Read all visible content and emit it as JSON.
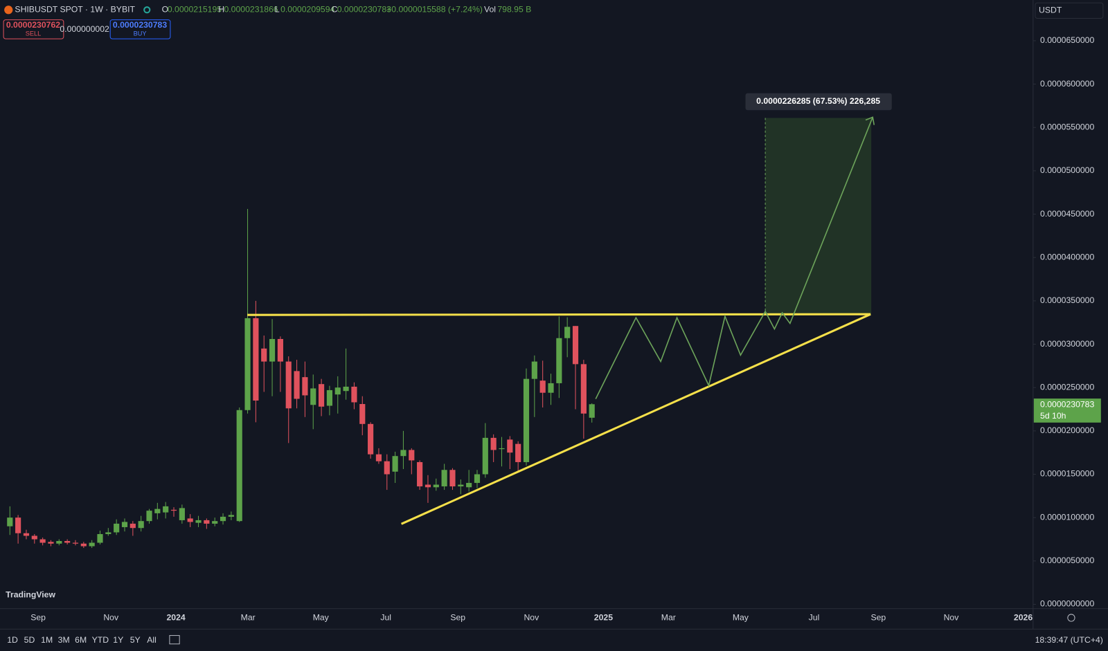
{
  "header": {
    "symbol": "SHIBUSDT SPOT · 1W · BYBIT",
    "ohlc": [
      {
        "key": "O",
        "value": "0.0000215195"
      },
      {
        "key": "H",
        "value": "0.0000231866"
      },
      {
        "key": "L",
        "value": "0.0000209594"
      },
      {
        "key": "C",
        "value": "0.0000230783"
      }
    ],
    "change": "+0.0000015588 (+7.24%)",
    "vol_key": "Vol",
    "vol": "798.95 B",
    "quote": "USDT"
  },
  "trade": {
    "sell_price": "0.0000230762",
    "sell": "SELL",
    "spread": "0.0000000021",
    "buy_price": "0.0000230783",
    "buy": "BUY"
  },
  "chart_data": {
    "type": "candlestick",
    "up_color": "#5da34a",
    "down_color": "#e0525d",
    "open": [
      9e-06,
      1e-05,
      8.2e-06,
      7.9e-06,
      7.5e-06,
      7.2e-06,
      7e-06,
      7.3e-06,
      7.1e-06,
      7e-06,
      6.7e-06,
      7.1e-06,
      8.1e-06,
      8.3e-06,
      8.9e-06,
      9.3e-06,
      8.8e-06,
      9.6e-06,
      1.05e-05,
      1.06e-05,
      1.09e-05,
      9.7e-06,
      9.9e-06,
      9.4e-06,
      9.7e-06,
      9.3e-06,
      9.6e-06,
      1.01e-05,
      9.6e-06,
      2.24e-05,
      3.3e-05,
      2.95e-05,
      2.8e-05,
      3.06e-05,
      2.8e-05,
      2.69e-05,
      2.62e-05,
      2.3e-05,
      2.54e-05,
      2.29e-05,
      2.42e-05,
      2.46e-05,
      2.51e-05,
      2.31e-05,
      2.08e-05,
      1.73e-05,
      1.65e-05,
      1.53e-05,
      1.71e-05,
      1.78e-05,
      1.64e-05,
      1.38e-05,
      1.35e-05,
      1.36e-05,
      1.55e-05,
      1.36e-05,
      1.35e-05,
      1.4e-05,
      1.5e-05,
      1.92e-05,
      1.79e-05,
      1.9e-05,
      1.85e-05,
      1.64e-05,
      2.6e-05,
      2.58e-05,
      2.44e-05,
      2.55e-05,
      3.07e-05,
      3.21e-05,
      2.77e-05,
      2.15195e-05
    ],
    "high": [
      1.13e-05,
      1.03e-05,
      8.6e-06,
      8.1e-06,
      7.7e-06,
      7.4e-06,
      7.5e-06,
      7.5e-06,
      7.4e-06,
      7.2e-06,
      7.4e-06,
      8.5e-06,
      8.8e-06,
      9.8e-06,
      9.9e-06,
      9.6e-06,
      1.02e-05,
      1.1e-05,
      1.17e-05,
      1.18e-05,
      1.12e-05,
      1.15e-05,
      1.04e-05,
      1.02e-05,
      9.9e-06,
      1e-05,
      1.05e-05,
      1.07e-05,
      2.27e-05,
      4.56e-05,
      3.5e-05,
      3.1e-05,
      3.29e-05,
      3.09e-05,
      2.86e-05,
      2.82e-05,
      2.8e-05,
      2.65e-05,
      2.6e-05,
      2.52e-05,
      2.63e-05,
      2.95e-05,
      2.56e-05,
      2.4e-05,
      2.1e-05,
      1.8e-05,
      1.73e-05,
      1.76e-05,
      2e-05,
      1.8e-05,
      1.66e-05,
      1.49e-05,
      1.45e-05,
      1.62e-05,
      1.57e-05,
      1.44e-05,
      1.55e-05,
      1.55e-05,
      2.09e-05,
      1.96e-05,
      1.93e-05,
      1.94e-05,
      1.88e-05,
      2.72e-05,
      2.87e-05,
      2.81e-05,
      2.66e-05,
      3.32e-05,
      3.31e-05,
      3.21e-05,
      2.82e-05,
      2.31866e-05
    ],
    "low": [
      8e-06,
      7e-06,
      7.5e-06,
      7e-06,
      6.8e-06,
      6.7e-06,
      6.8e-06,
      6.9e-06,
      6.8e-06,
      6.5e-06,
      6.5e-06,
      6.9e-06,
      7.9e-06,
      8e-06,
      8.4e-06,
      7.9e-06,
      8.4e-06,
      9.3e-06,
      9.8e-06,
      9.9e-06,
      1.01e-05,
      9.3e-06,
      8.9e-06,
      8.9e-06,
      8.7e-06,
      9e-06,
      9.2e-06,
      9.7e-06,
      9.5e-06,
      2.2e-05,
      2.1e-05,
      2.45e-05,
      2.4e-05,
      2.45e-05,
      1.86e-05,
      2.26e-05,
      2.16e-05,
      2.02e-05,
      2.17e-05,
      2.18e-05,
      2.2e-05,
      2.36e-05,
      2.25e-05,
      1.95e-05,
      1.68e-05,
      1.62e-05,
      1.32e-05,
      1.4e-05,
      1.56e-05,
      1.5e-05,
      1.32e-05,
      1.17e-05,
      1.31e-05,
      1.32e-05,
      1.32e-05,
      1.27e-05,
      1.3e-05,
      1.34e-05,
      1.46e-05,
      1.64e-05,
      1.59e-05,
      1.56e-05,
      1.54e-05,
      1.6e-05,
      2.16e-05,
      2.27e-05,
      2.3e-05,
      2.38e-05,
      2.85e-05,
      2.25e-05,
      1.91e-05,
      2.09594e-05
    ],
    "close": [
      1e-05,
      8.2e-06,
      7.9e-06,
      7.5e-06,
      7.1e-06,
      7e-06,
      7.3e-06,
      7.1e-06,
      7e-06,
      6.7e-06,
      7.1e-06,
      8.1e-06,
      8.3e-06,
      9.3e-06,
      9.5e-06,
      8.8e-06,
      9.6e-06,
      1.08e-05,
      1.1e-05,
      1.13e-05,
      1.08e-05,
      1.11e-05,
      9.5e-06,
      9.7e-06,
      9.3e-06,
      9.6e-06,
      1.01e-05,
      1.03e-05,
      2.24e-05,
      3.3e-05,
      2.35e-05,
      2.8e-05,
      3.06e-05,
      2.8e-05,
      2.26e-05,
      2.37e-05,
      2.41e-05,
      2.49e-05,
      2.28e-05,
      2.47e-05,
      2.5e-05,
      2.51e-05,
      2.33e-05,
      2.08e-05,
      1.73e-05,
      1.65e-05,
      1.5e-05,
      1.71e-05,
      1.78e-05,
      1.66e-05,
      1.36e-05,
      1.35e-05,
      1.38e-05,
      1.55e-05,
      1.36e-05,
      1.38e-05,
      1.4e-05,
      1.5e-05,
      1.92e-05,
      1.78e-05,
      1.8e-05,
      1.75e-05,
      1.64e-05,
      2.6e-05,
      2.8e-05,
      2.44e-05,
      2.55e-05,
      3.07e-05,
      3.2e-05,
      2.77e-05,
      2.2e-05,
      2.30783e-05
    ],
    "ylim": [
      -5e-07,
      6.97e-05
    ],
    "yticks": [
      {
        "value": 0,
        "label": "0.0000000000"
      },
      {
        "value": 5e-06,
        "label": "0.0000050000"
      },
      {
        "value": 1e-05,
        "label": "0.0000100000"
      },
      {
        "value": 1.5e-05,
        "label": "0.0000150000"
      },
      {
        "value": 2e-05,
        "label": "0.0000200000"
      },
      {
        "value": 2.5e-05,
        "label": "0.0000250000"
      },
      {
        "value": 3e-05,
        "label": "0.0000300000"
      },
      {
        "value": 3.5e-05,
        "label": "0.0000350000"
      },
      {
        "value": 4e-05,
        "label": "0.0000400000"
      },
      {
        "value": 4.5e-05,
        "label": "0.0000450000"
      },
      {
        "value": 5e-05,
        "label": "0.0000500000"
      },
      {
        "value": 5.5e-05,
        "label": "0.0000550000"
      },
      {
        "value": 6e-05,
        "label": "0.0000600000"
      },
      {
        "value": 6.5e-05,
        "label": "0.0000650000"
      }
    ],
    "grid": false,
    "xtick_labels": [
      "Sep",
      "Nov",
      "2024",
      "Mar",
      "May",
      "Jul",
      "Sep",
      "Nov",
      "2025",
      "Mar",
      "May",
      "Jul",
      "Sep",
      "Nov",
      "2026"
    ],
    "last_price_label": "0.0000230783",
    "countdown": "5d 10h",
    "measure_label": "0.0000226285 (67.53%) 226,285"
  },
  "branding": "TradingView",
  "toolbar": {
    "ranges": [
      "1D",
      "5D",
      "1M",
      "3M",
      "6M",
      "YTD",
      "1Y",
      "5Y",
      "All"
    ],
    "clock": "18:39:47 (UTC+4)"
  }
}
